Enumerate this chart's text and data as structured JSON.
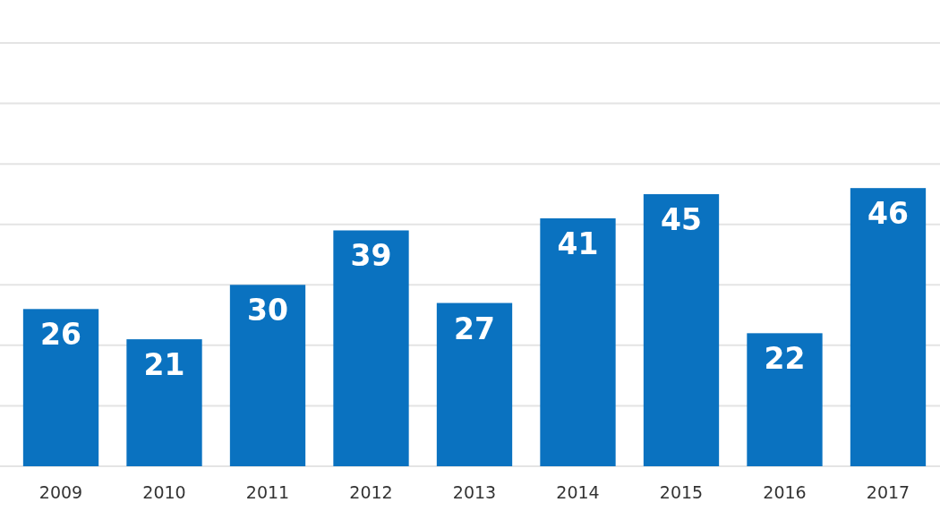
{
  "chart_data": {
    "type": "bar",
    "categories": [
      "2009",
      "2010",
      "2011",
      "2012",
      "2013",
      "2014",
      "2015",
      "2016",
      "2017"
    ],
    "values": [
      26,
      21,
      30,
      39,
      27,
      41,
      45,
      22,
      46
    ],
    "color": "#0a72c0",
    "ylim": [
      0,
      70
    ],
    "yticks": [
      {
        "value": 0,
        "label": null
      },
      {
        "value": 10,
        "label": null
      },
      {
        "value": 20,
        "label": null
      },
      {
        "value": 30,
        "label": null
      },
      {
        "value": 40,
        "label": null
      },
      {
        "value": 50,
        "label": null
      },
      {
        "value": 60,
        "label": null
      },
      {
        "value": 70,
        "label": null
      }
    ],
    "grid": "y",
    "data_labels": true
  }
}
